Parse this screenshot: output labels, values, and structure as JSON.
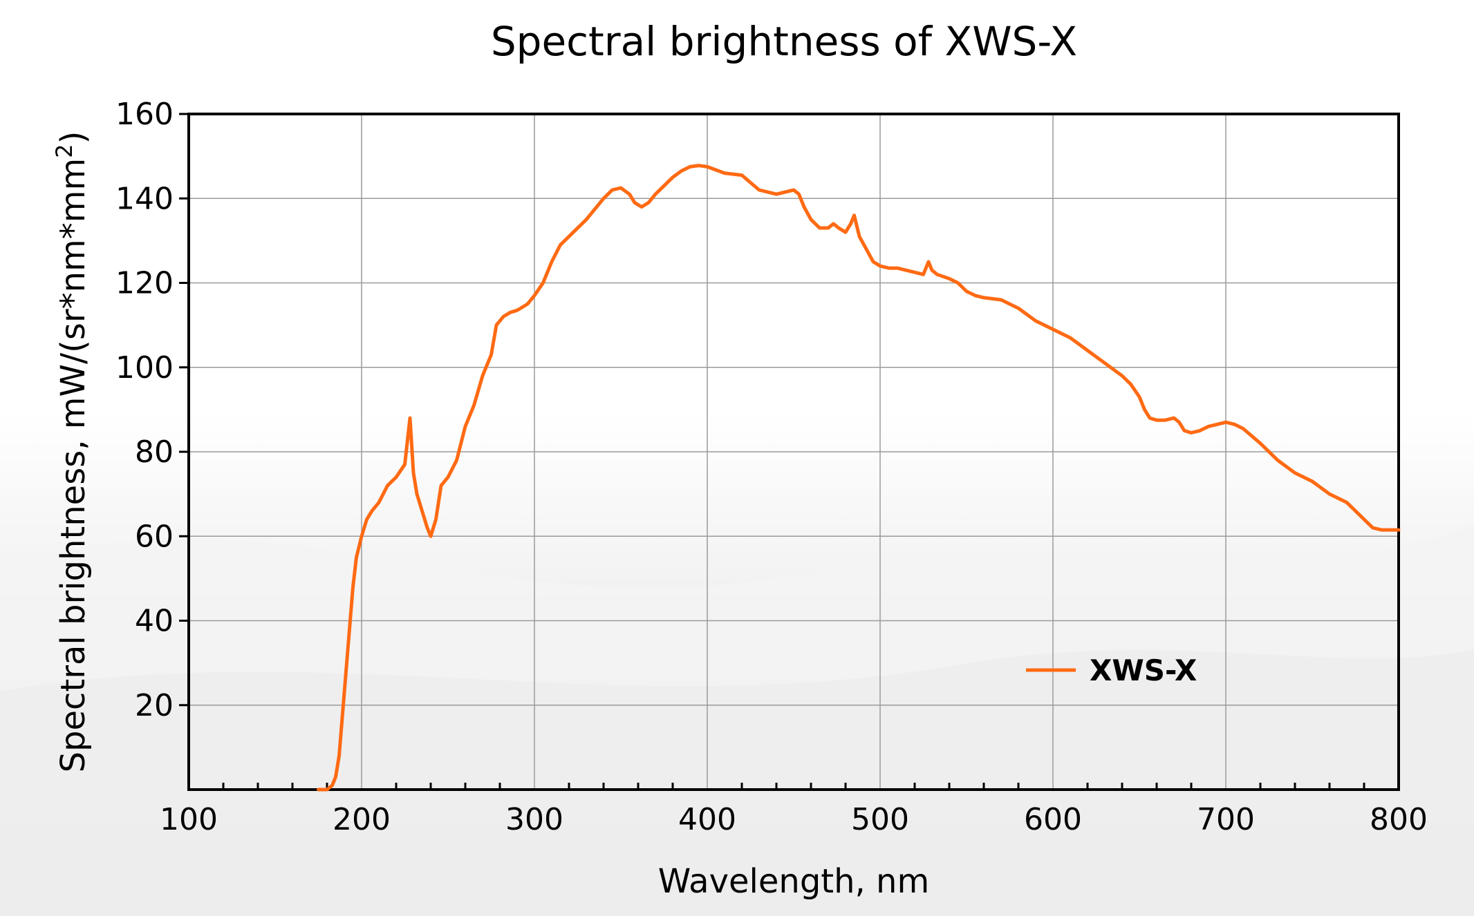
{
  "chart_data": {
    "type": "line",
    "title": "Spectral brightness of XWS-X",
    "xlabel": "Wavelength, nm",
    "ylabel": "Spectral brightness, mW/(sr*nm*mm",
    "ylabel_superscript": "2",
    "ylabel_suffix": ")",
    "xlim": [
      100,
      800
    ],
    "ylim": [
      0,
      160
    ],
    "x_ticks": [
      "100",
      "200",
      "300",
      "400",
      "500",
      "600",
      "700",
      "800"
    ],
    "y_ticks": [
      "20",
      "40",
      "60",
      "80",
      "100",
      "120",
      "140",
      "160"
    ],
    "grid": true,
    "legend_position": "lower-right",
    "series": [
      {
        "name": "XWS-X",
        "color": "#ff6a13",
        "x": [
          175,
          180,
          183,
          185,
          187,
          189,
          191,
          193,
          195,
          197,
          200,
          203,
          206,
          210,
          215,
          220,
          225,
          228,
          230,
          232,
          235,
          238,
          240,
          243,
          246,
          250,
          255,
          260,
          265,
          270,
          275,
          278,
          282,
          286,
          290,
          296,
          300,
          305,
          310,
          315,
          320,
          330,
          340,
          345,
          350,
          355,
          358,
          362,
          366,
          370,
          375,
          380,
          385,
          390,
          395,
          400,
          410,
          420,
          430,
          440,
          445,
          450,
          453,
          456,
          460,
          465,
          470,
          473,
          476,
          480,
          483,
          485,
          488,
          492,
          496,
          500,
          505,
          510,
          515,
          520,
          525,
          528,
          530,
          533,
          540,
          545,
          550,
          555,
          560,
          570,
          580,
          590,
          600,
          610,
          620,
          630,
          640,
          645,
          650,
          653,
          656,
          660,
          665,
          670,
          673,
          676,
          680,
          685,
          690,
          695,
          700,
          705,
          710,
          720,
          730,
          740,
          750,
          760,
          770,
          775,
          780,
          785,
          790,
          795,
          800
        ],
        "values": [
          0,
          0,
          1,
          3,
          8,
          18,
          28,
          38,
          48,
          55,
          60,
          64,
          66,
          68,
          72,
          74,
          77,
          88,
          75,
          70,
          66,
          62,
          60,
          64,
          72,
          74,
          78,
          86,
          91,
          98,
          103,
          110,
          112,
          113,
          113.5,
          115,
          117,
          120,
          125,
          129,
          131,
          135,
          140,
          142,
          142.5,
          141,
          139,
          138,
          139,
          141,
          143,
          145,
          146.5,
          147.5,
          147.8,
          147.5,
          146,
          145.5,
          142,
          141,
          141.5,
          142,
          141,
          138,
          135,
          133,
          133,
          134,
          133,
          132,
          134,
          136,
          131,
          128,
          125,
          124,
          123.5,
          123.5,
          123,
          122.5,
          122,
          125,
          123,
          122,
          121,
          120,
          118,
          117,
          116.5,
          116,
          114,
          111,
          109,
          107,
          104,
          101,
          98,
          96,
          93,
          90,
          88,
          87.5,
          87.5,
          88,
          87,
          85,
          84.5,
          85,
          86,
          86.5,
          87,
          86.5,
          85.5,
          82,
          78,
          75,
          73,
          70,
          68,
          66,
          64,
          62,
          61.5,
          61.5,
          61.5
        ]
      }
    ]
  }
}
